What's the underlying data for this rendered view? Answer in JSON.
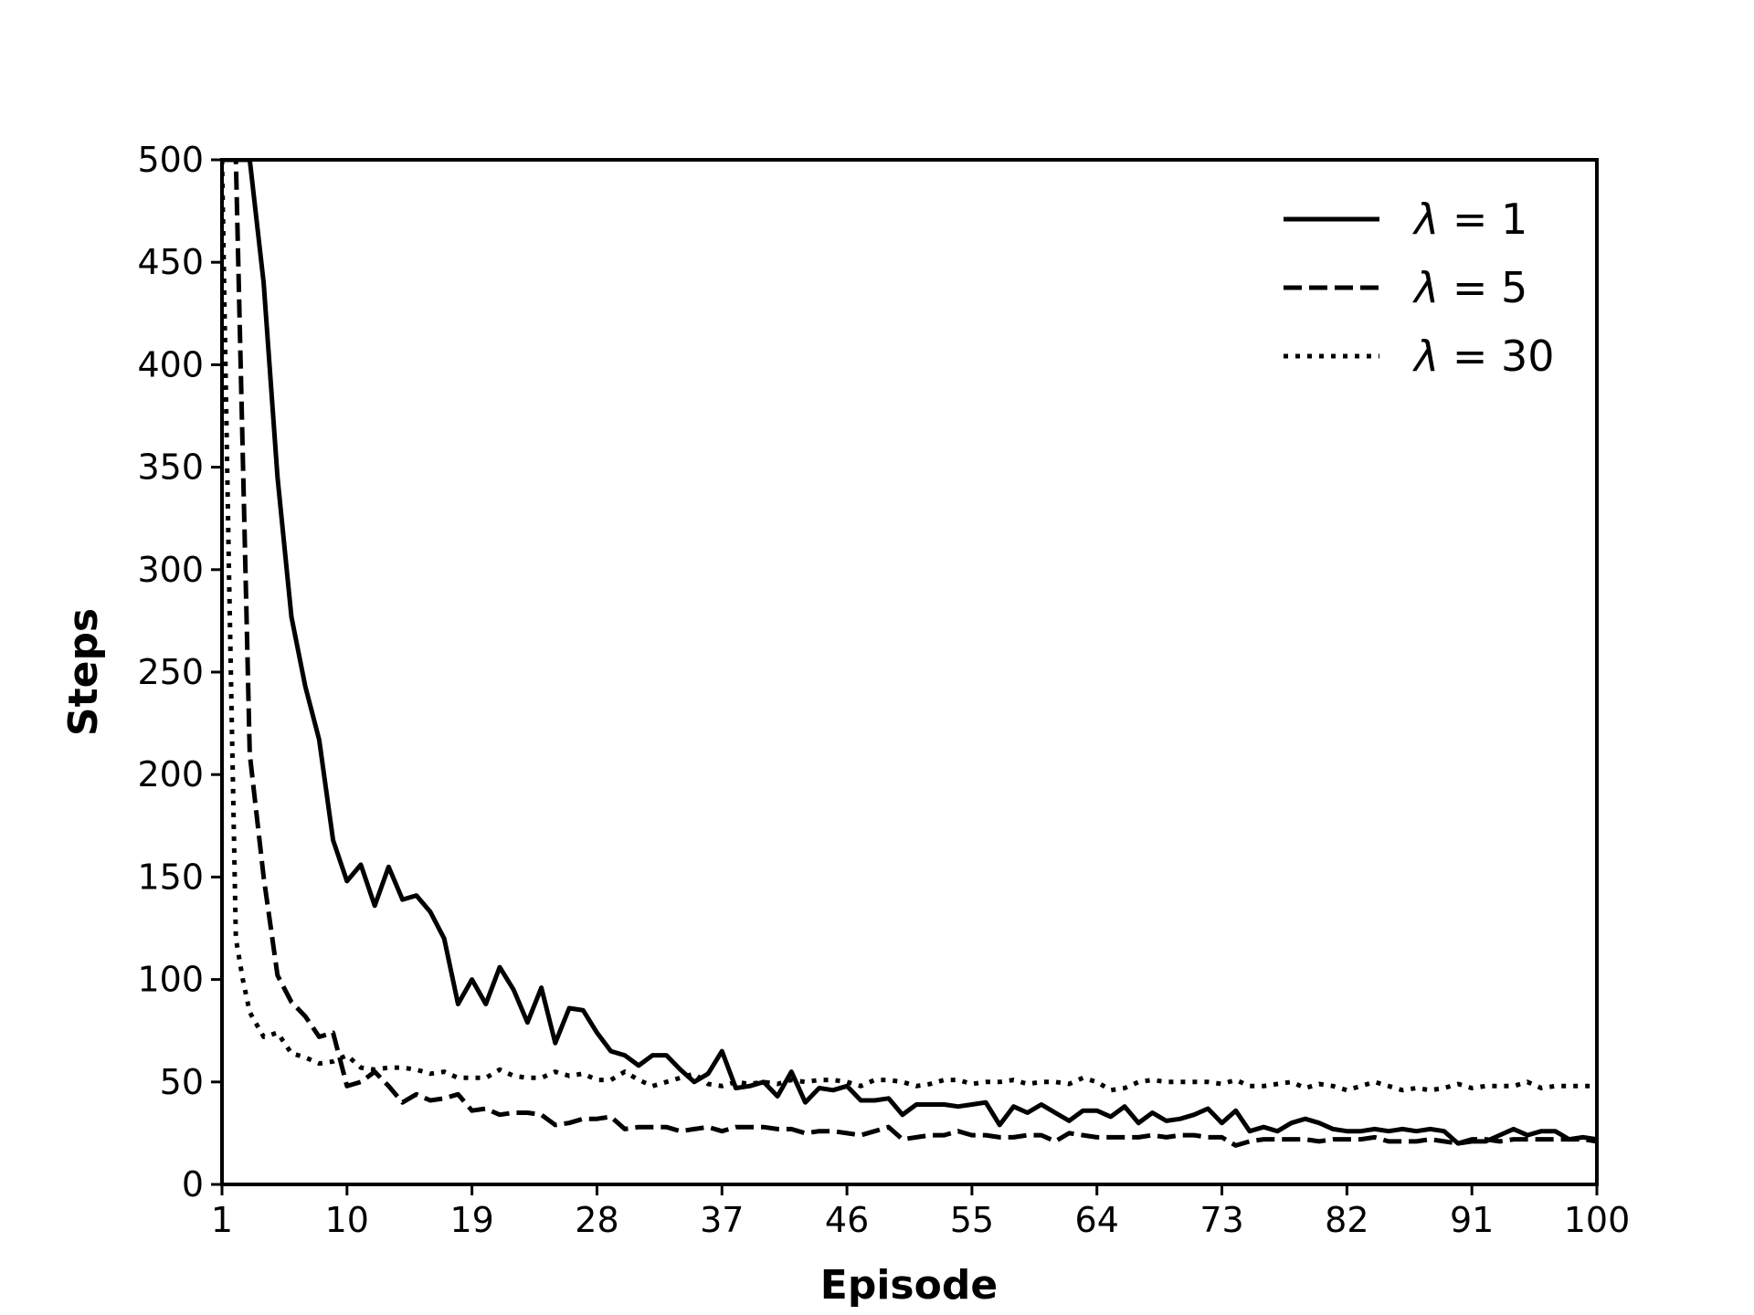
{
  "chart_data": {
    "type": "line",
    "xlabel": "Episode",
    "ylabel": "Steps",
    "xlim": [
      1,
      100
    ],
    "ylim": [
      0,
      500
    ],
    "xticks": [
      1,
      10,
      19,
      28,
      37,
      46,
      55,
      64,
      73,
      82,
      91,
      100
    ],
    "yticks": [
      0,
      50,
      100,
      150,
      200,
      250,
      300,
      350,
      400,
      450,
      500
    ],
    "grid": false,
    "legend_position": "top-right",
    "legend_symbol": "λ",
    "series": [
      {
        "name": "λ = 1",
        "legend_value": "1",
        "style": "solid",
        "x": [
          1,
          2,
          3,
          4,
          5,
          6,
          7,
          8,
          9,
          10,
          11,
          12,
          13,
          14,
          15,
          16,
          17,
          18,
          19,
          20,
          21,
          22,
          23,
          24,
          25,
          26,
          27,
          28,
          29,
          30,
          31,
          32,
          33,
          34,
          35,
          36,
          37,
          38,
          39,
          40,
          41,
          42,
          43,
          44,
          45,
          46,
          47,
          48,
          49,
          50,
          51,
          52,
          53,
          54,
          55,
          56,
          57,
          58,
          59,
          60,
          61,
          62,
          63,
          64,
          65,
          66,
          67,
          68,
          69,
          70,
          71,
          72,
          73,
          74,
          75,
          76,
          77,
          78,
          79,
          80,
          81,
          82,
          83,
          84,
          85,
          86,
          87,
          88,
          89,
          90,
          91,
          92,
          93,
          94,
          95,
          96,
          97,
          98,
          99,
          100
        ],
        "y": [
          500,
          500,
          500,
          440,
          345,
          277,
          243,
          217,
          168,
          148,
          156,
          136,
          155,
          139,
          141,
          133,
          120,
          88,
          100,
          88,
          106,
          95,
          79,
          96,
          69,
          86,
          85,
          74,
          65,
          63,
          58,
          63,
          63,
          56,
          50,
          54,
          65,
          47,
          48,
          50,
          43,
          55,
          40,
          47,
          46,
          48,
          41,
          41,
          42,
          34,
          39,
          39,
          39,
          38,
          39,
          40,
          29,
          38,
          35,
          39,
          35,
          31,
          36,
          36,
          33,
          38,
          30,
          35,
          31,
          32,
          34,
          37,
          30,
          36,
          26,
          28,
          26,
          30,
          32,
          30,
          27,
          26,
          26,
          27,
          26,
          27,
          26,
          27,
          26,
          20,
          21,
          21,
          24,
          27,
          24,
          26,
          26,
          22,
          23,
          22
        ]
      },
      {
        "name": "λ = 5",
        "legend_value": "5",
        "style": "dashed",
        "x": [
          1,
          2,
          3,
          4,
          5,
          6,
          7,
          8,
          9,
          10,
          11,
          12,
          13,
          14,
          15,
          16,
          17,
          18,
          19,
          20,
          21,
          22,
          23,
          24,
          25,
          26,
          27,
          28,
          29,
          30,
          31,
          32,
          33,
          34,
          35,
          36,
          37,
          38,
          39,
          40,
          41,
          42,
          43,
          44,
          45,
          46,
          47,
          48,
          49,
          50,
          51,
          52,
          53,
          54,
          55,
          56,
          57,
          58,
          59,
          60,
          61,
          62,
          63,
          64,
          65,
          66,
          67,
          68,
          69,
          70,
          71,
          72,
          73,
          74,
          75,
          76,
          77,
          78,
          79,
          80,
          81,
          82,
          83,
          84,
          85,
          86,
          87,
          88,
          89,
          90,
          91,
          92,
          93,
          94,
          95,
          96,
          97,
          98,
          99,
          100
        ],
        "y": [
          500,
          500,
          210,
          150,
          102,
          89,
          82,
          72,
          74,
          48,
          50,
          55,
          48,
          40,
          44,
          41,
          42,
          44,
          36,
          37,
          34,
          35,
          35,
          34,
          29,
          30,
          32,
          32,
          33,
          27,
          28,
          28,
          28,
          26,
          27,
          28,
          26,
          28,
          28,
          28,
          27,
          27,
          25,
          26,
          26,
          25,
          24,
          26,
          28,
          22,
          23,
          24,
          24,
          26,
          24,
          24,
          23,
          23,
          24,
          24,
          21,
          25,
          24,
          23,
          23,
          23,
          23,
          24,
          23,
          24,
          24,
          23,
          23,
          19,
          21,
          22,
          22,
          22,
          22,
          21,
          22,
          22,
          22,
          23,
          21,
          21,
          21,
          22,
          21,
          20,
          22,
          22,
          21,
          22,
          22,
          22,
          22,
          22,
          22,
          21
        ]
      },
      {
        "name": "λ = 30",
        "legend_value": "30",
        "style": "dotted",
        "x": [
          1,
          1.5,
          2,
          2.5,
          3,
          4,
          5,
          6,
          7,
          8,
          9,
          10,
          11,
          12,
          13,
          14,
          15,
          16,
          17,
          18,
          19,
          20,
          21,
          22,
          23,
          24,
          25,
          26,
          27,
          28,
          29,
          30,
          31,
          32,
          33,
          34,
          35,
          36,
          37,
          38,
          39,
          40,
          41,
          42,
          43,
          44,
          45,
          46,
          47,
          48,
          49,
          50,
          51,
          52,
          53,
          54,
          55,
          56,
          57,
          58,
          59,
          60,
          61,
          62,
          63,
          64,
          65,
          66,
          67,
          68,
          69,
          70,
          71,
          72,
          73,
          74,
          75,
          76,
          77,
          78,
          79,
          80,
          81,
          82,
          83,
          84,
          85,
          86,
          87,
          88,
          89,
          90,
          91,
          92,
          93,
          94,
          95,
          96,
          97,
          98,
          99,
          100
        ],
        "y": [
          500,
          300,
          120,
          100,
          84,
          72,
          74,
          64,
          62,
          59,
          60,
          63,
          57,
          56,
          57,
          57,
          56,
          54,
          55,
          52,
          52,
          52,
          56,
          53,
          52,
          52,
          55,
          53,
          54,
          51,
          51,
          55,
          51,
          48,
          50,
          52,
          54,
          49,
          48,
          50,
          49,
          50,
          49,
          51,
          50,
          51,
          51,
          50,
          48,
          51,
          51,
          50,
          48,
          49,
          51,
          51,
          49,
          50,
          50,
          51,
          49,
          50,
          50,
          49,
          52,
          50,
          46,
          47,
          50,
          51,
          50,
          50,
          50,
          50,
          49,
          51,
          48,
          48,
          49,
          50,
          47,
          49,
          48,
          46,
          48,
          50,
          48,
          46,
          47,
          46,
          47,
          49,
          47,
          48,
          48,
          48,
          50,
          47,
          48,
          48,
          48,
          48
        ]
      }
    ]
  }
}
